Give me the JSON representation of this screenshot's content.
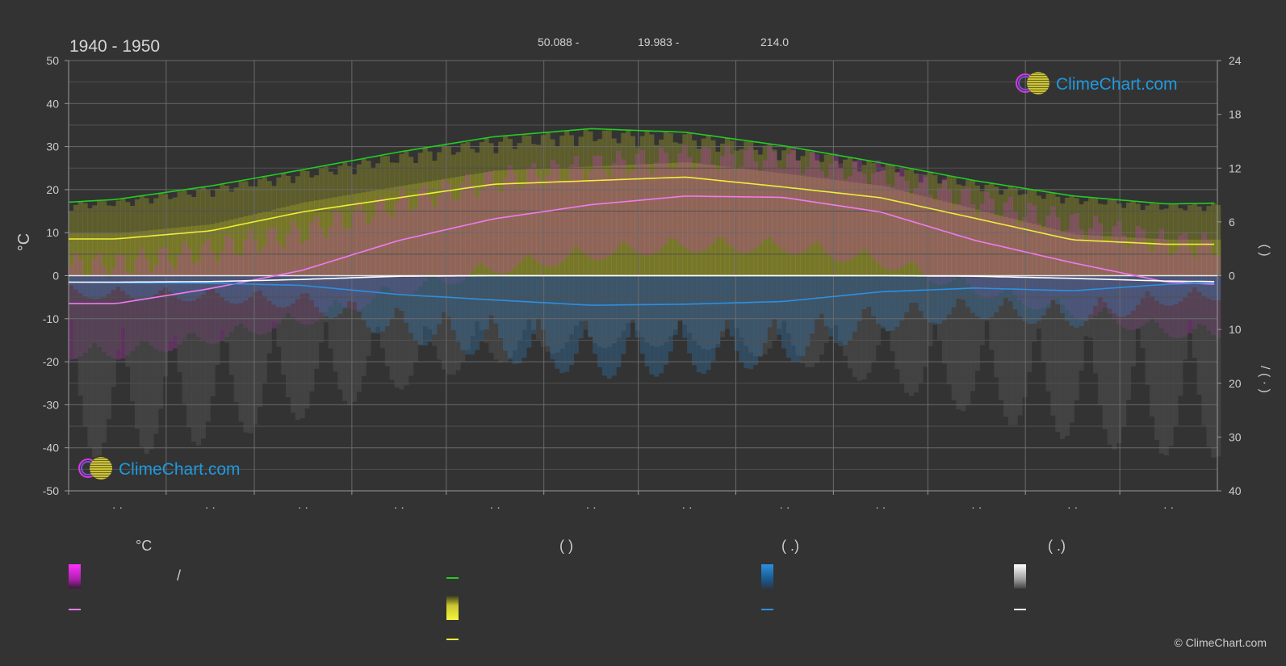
{
  "header": {
    "period": "1940 - 1950",
    "info_items": [
      "50.088 -",
      "19.983 -",
      "214.0"
    ]
  },
  "logo": {
    "text": "ClimeChart.com"
  },
  "footer": {
    "copyright": "© ClimeChart.com"
  },
  "legend": {
    "col_temp_header": "°C",
    "col_daylight_header": "(          )",
    "col_rain_header": "(   .)",
    "col_snow_header": "(   .)",
    "temp_range_label": "/"
  },
  "chart_data": {
    "type": "area",
    "title": "1940 - 1950",
    "ylabel_left": "°C",
    "ylabel_right_top": "(   )",
    "ylabel_right_bottom": "/ (  ·  )",
    "xlim": [
      0,
      365
    ],
    "ylim_left": [
      -50,
      50
    ],
    "yticks_left": [
      50,
      40,
      30,
      20,
      10,
      0,
      -10,
      -20,
      -30,
      -40,
      -50
    ],
    "yticks_right_top": [
      24,
      18,
      12,
      6,
      0
    ],
    "yticks_right_bottom": [
      10,
      20,
      30,
      40
    ],
    "month_tick_labels": [
      "· ·",
      "· ·",
      "· ·",
      "· ·",
      "· ·",
      "· ·",
      "· ·",
      "· ·",
      "· ·",
      "· ·",
      "· ·",
      "· ·"
    ],
    "grid": true,
    "legend_position": "bottom",
    "colors": {
      "daylight": "#22cc22",
      "sunshine": "#eeee3a",
      "temp_mean": "#f07af0",
      "rain": "#2e8fe0",
      "snow": "#ffffff",
      "temp_band": "#d238d2",
      "sunshine_band": "#a8a826",
      "precip_band": "#4e4e4e"
    },
    "series": [
      {
        "key": "daylight_hours",
        "axis": "right_top",
        "x": [
          0,
          15,
          45,
          74,
          105,
          135,
          166,
          196,
          227,
          258,
          288,
          319,
          349,
          365
        ],
        "values": [
          8.2,
          8.5,
          10.0,
          11.8,
          13.8,
          15.5,
          16.4,
          16.0,
          14.5,
          12.6,
          10.6,
          8.9,
          8.0,
          8.1
        ]
      },
      {
        "key": "sunshine_hours",
        "axis": "right_top",
        "x": [
          0,
          15,
          45,
          74,
          105,
          135,
          166,
          196,
          227,
          258,
          288,
          319,
          349,
          365
        ],
        "values": [
          4.1,
          4.1,
          5.0,
          7.1,
          8.7,
          10.2,
          10.6,
          11.0,
          9.9,
          8.7,
          6.4,
          4.0,
          3.5,
          3.5
        ]
      },
      {
        "key": "temperature_mean",
        "axis": "left",
        "x": [
          0,
          15,
          45,
          74,
          105,
          135,
          166,
          196,
          227,
          258,
          288,
          319,
          349,
          365
        ],
        "values": [
          -6.5,
          -6.5,
          -3.0,
          1.2,
          8.2,
          13.2,
          16.5,
          18.5,
          18.2,
          14.8,
          8.2,
          3.0,
          -1.5,
          -2.0
        ]
      },
      {
        "key": "rain_mm",
        "axis": "right_bottom",
        "x": [
          0,
          15,
          45,
          74,
          105,
          135,
          166,
          196,
          227,
          258,
          288,
          319,
          349,
          365
        ],
        "values": [
          1.2,
          1.3,
          1.4,
          1.8,
          3.5,
          4.5,
          5.5,
          5.3,
          4.8,
          3.0,
          2.3,
          2.8,
          1.6,
          1.3
        ]
      },
      {
        "key": "snow_mm",
        "axis": "right_bottom",
        "x": [
          0,
          15,
          45,
          74,
          105,
          135,
          166,
          196,
          227,
          258,
          288,
          319,
          349,
          365
        ],
        "values": [
          1.2,
          1.2,
          1.1,
          0.7,
          0.1,
          0.0,
          0.0,
          0.0,
          0.0,
          0.0,
          0.1,
          0.5,
          1.0,
          1.1
        ]
      }
    ]
  }
}
